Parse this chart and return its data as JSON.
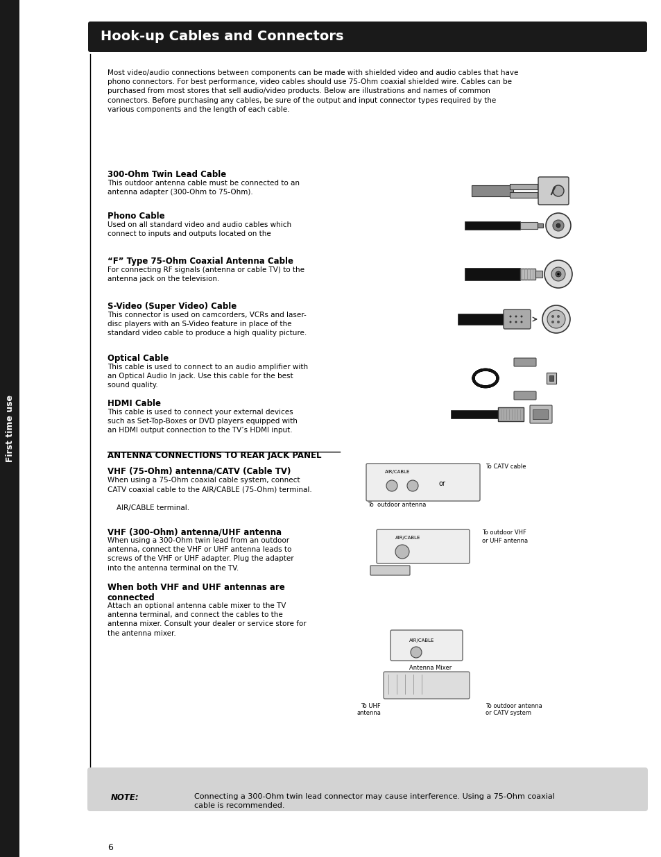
{
  "title": "Hook-up Cables and Connectors",
  "title_bg": "#1a1a1a",
  "title_color": "#ffffff",
  "page_bg": "#ffffff",
  "sidebar_bg": "#1a1a1a",
  "sidebar_text": "First time use",
  "sidebar_text_color": "#ffffff",
  "page_number": "6",
  "note_bg": "#d3d3d3",
  "intro_text": "Most video/audio connections between components can be made with shielded video and audio cables that have\nphono connectors. For best performance, video cables should use 75-Ohm coaxial shielded wire. Cables can be\npurchased from most stores that sell audio/video products. Below are illustrations and names of common\nconnectors. Before purchasing any cables, be sure of the output and input connector types required by the\nvarious components and the length of each cable.",
  "cable_sections": [
    {
      "title": "300-Ohm Twin Lead Cable",
      "body": "This outdoor antenna cable must be connected to an\nantenna adapter (300-Ohm to 75-Ohm)."
    },
    {
      "title": "Phono Cable",
      "body": "Used on all standard video and audio cables which\nconnect to inputs and outputs located on the"
    },
    {
      "title": "“F” Type 75-Ohm Coaxial Antenna Cable",
      "body": "For connecting RF signals (antenna or cable TV) to the\nantenna jack on the television."
    },
    {
      "title": "S-Video (Super Video) Cable",
      "body": "This connector is used on camcorders, VCRs and laser-\ndisc players with an S-Video feature in place of the\nstandard video cable to produce a high quality picture."
    },
    {
      "title": "Optical Cable",
      "body": "This cable is used to connect to an audio amplifier with\nan Optical Audio In jack. Use this cable for the best\nsound quality."
    },
    {
      "title": "HDMI Cable",
      "body": "This cable is used to connect your external devices\nsuch as Set-Top-Boxes or DVD players equipped with\nan HDMI output connection to the TV’s HDMI input."
    }
  ],
  "antenna_section_title": "ANTENNA CONNECTIONS TO REAR JACK PANEL",
  "antenna_subsections": [
    {
      "title": "VHF (75-Ohm) antenna/CATV (Cable TV)",
      "body": "When using a 75-Ohm coaxial cable system, connect\nCATV coaxial cable to the AIR/CABLE (75-Ohm) terminal.\n\n    AIR/CABLE terminal."
    },
    {
      "title": "VHF (300-Ohm) antenna/UHF antenna",
      "body": "When using a 300-Ohm twin lead from an outdoor\nantenna, connect the VHF or UHF antenna leads to\nscrews of the VHF or UHF adapter. Plug the adapter\ninto the antenna terminal on the TV."
    },
    {
      "title": "When both VHF and UHF antennas are\nconnected",
      "body": "Attach an optional antenna cable mixer to the TV\nantenna terminal, and connect the cables to the\nantenna mixer. Consult your dealer or service store for\nthe antenna mixer."
    }
  ],
  "note_label": "NOTE:",
  "note_text": "Connecting a 300-Ohm twin lead connector may cause interference. Using a 75-Ohm coaxial\ncable is recommended."
}
